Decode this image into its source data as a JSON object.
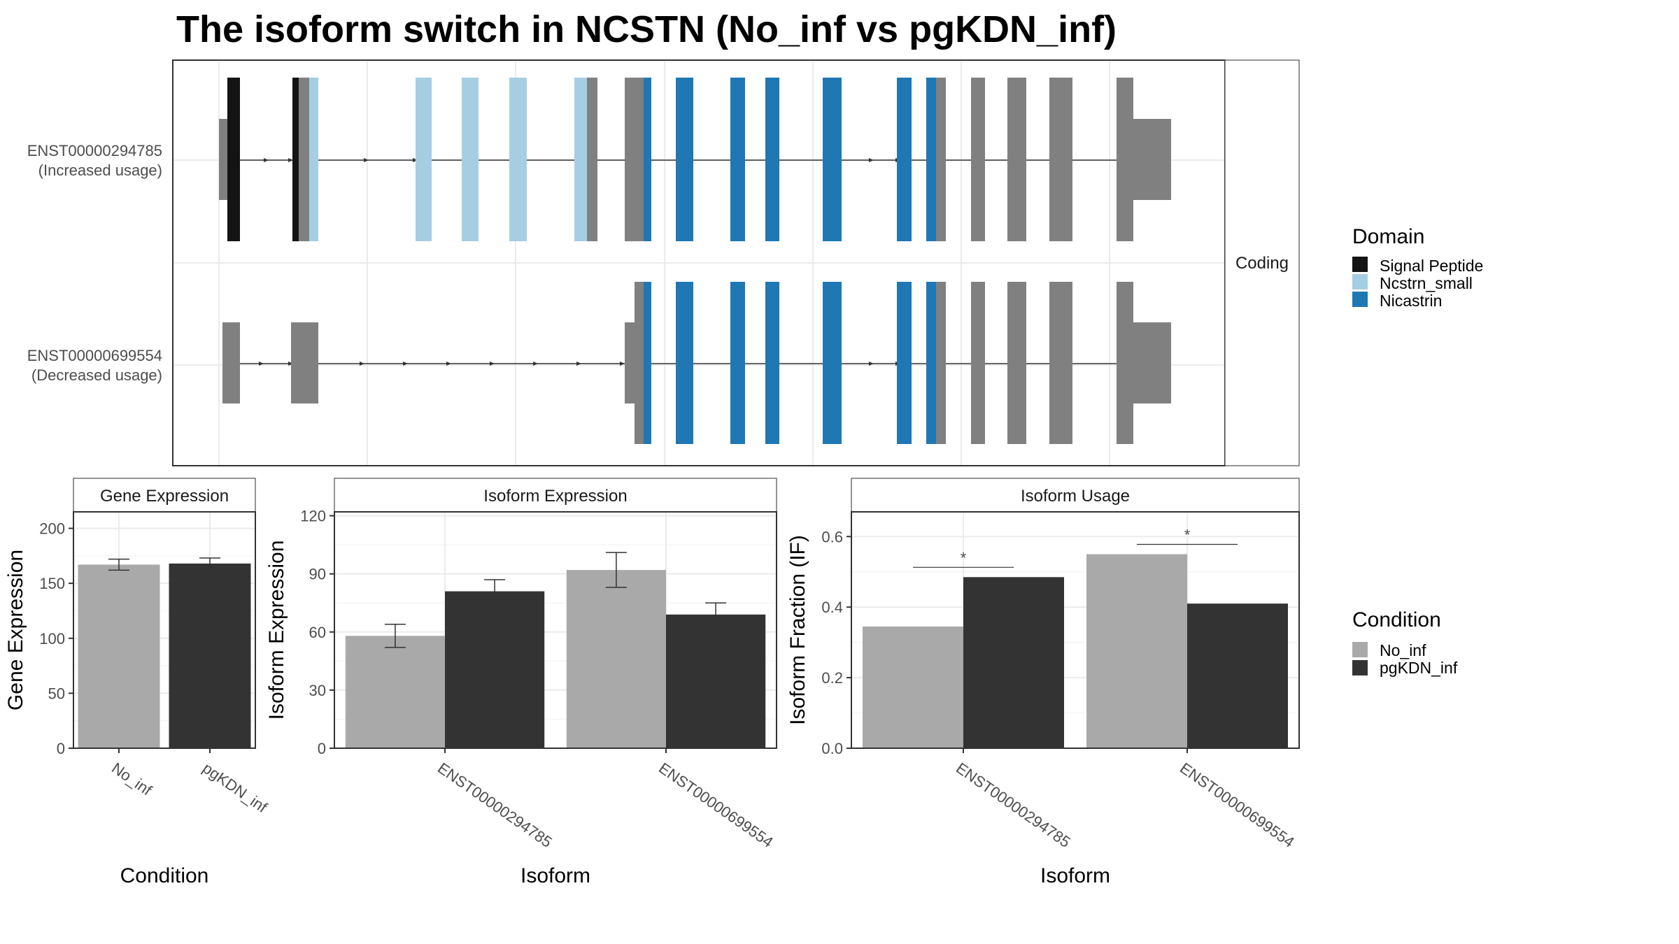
{
  "title": "The isoform switch in NCSTN (No_inf vs pgKDN_inf)",
  "colors": {
    "no_inf": "#a9a9a9",
    "pgkdn_inf": "#333333",
    "signal_peptide": "#141414",
    "ncstrn_small": "#a6cee3",
    "nicastrin": "#1f78b4",
    "exon_grey": "#808080"
  },
  "isoform_structure": {
    "facet_label": "Coding",
    "isoforms": [
      {
        "id": "ENST00000294785",
        "usage": "(Increased usage)"
      },
      {
        "id": "ENST00000699554",
        "usage": "(Decreased usage)"
      }
    ],
    "legend_title": "Domain",
    "legend": [
      "Signal Peptide",
      "Ncstrn_small",
      "Nicastrin"
    ]
  },
  "condition_legend": {
    "title": "Condition",
    "items": [
      "No_inf",
      "pgKDN_inf"
    ]
  },
  "chart_data": [
    {
      "type": "bar",
      "title": "Gene Expression",
      "xlabel": "Condition",
      "ylabel": "Gene Expression",
      "categories": [
        "No_inf",
        "pgKDN_inf"
      ],
      "values": [
        167,
        168
      ],
      "errors": [
        5,
        5
      ],
      "ylim": [
        0,
        215
      ],
      "yticks": [
        0,
        50,
        100,
        150,
        200
      ]
    },
    {
      "type": "bar",
      "title": "Isoform Expression",
      "xlabel": "Isoform",
      "ylabel": "Isoform Expression",
      "categories": [
        "ENST00000294785",
        "ENST00000699554"
      ],
      "series": [
        {
          "name": "No_inf",
          "values": [
            58,
            92
          ],
          "errors": [
            6,
            9
          ]
        },
        {
          "name": "pgKDN_inf",
          "values": [
            81,
            69
          ],
          "errors": [
            6,
            6
          ]
        }
      ],
      "ylim": [
        0,
        122
      ],
      "yticks": [
        0,
        30,
        60,
        90,
        120
      ]
    },
    {
      "type": "bar",
      "title": "Isoform Usage",
      "xlabel": "Isoform",
      "ylabel": "Isoform Fraction (IF)",
      "categories": [
        "ENST00000294785",
        "ENST00000699554"
      ],
      "series": [
        {
          "name": "No_inf",
          "values": [
            0.345,
            0.55
          ]
        },
        {
          "name": "pgKDN_inf",
          "values": [
            0.485,
            0.41
          ]
        }
      ],
      "significance": [
        "*",
        "*"
      ],
      "ylim": [
        0,
        0.67
      ],
      "yticks": [
        0.0,
        0.2,
        0.4,
        0.6
      ]
    }
  ]
}
